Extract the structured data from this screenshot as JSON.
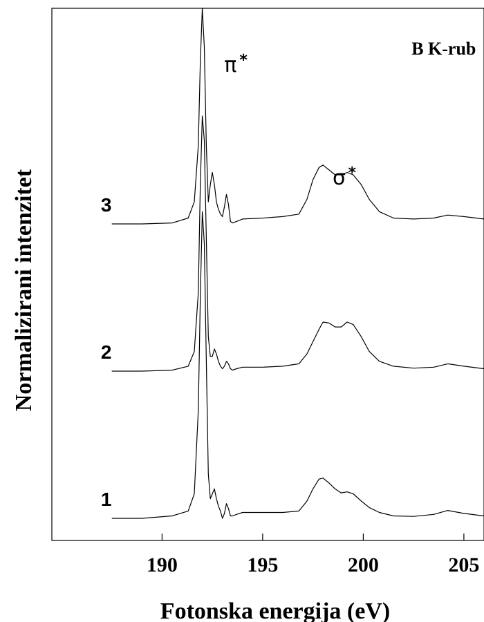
{
  "chart_data": {
    "type": "line",
    "title": "",
    "xlabel": "Fotonska energija (eV)",
    "ylabel": "Normalizirani intenzitet",
    "xlim": [
      186.0,
      206.0
    ],
    "ylim": [
      0.0,
      10.0
    ],
    "xticks": [
      190,
      195,
      200,
      205
    ],
    "xtick_labels": [
      "190",
      "195",
      "200",
      "205"
    ],
    "y_ticks_shown": false,
    "grid": false,
    "annotations": [
      {
        "id": "edge",
        "text": "B K-rub",
        "x": 204.0,
        "y": 9.45
      },
      {
        "id": "pi",
        "symbol": "π",
        "sup": "*",
        "x": 193.4,
        "y": 9.1
      },
      {
        "id": "sigma",
        "symbol": "σ",
        "sup": "*",
        "x": 198.8,
        "y": 6.8
      }
    ],
    "series": [
      {
        "label": "1",
        "color": "#000000",
        "x": [
          187.5,
          189.0,
          190.5,
          191.3,
          191.6,
          191.8,
          191.9,
          192.0,
          192.1,
          192.2,
          192.3,
          192.4,
          192.5,
          192.6,
          192.7,
          192.8,
          192.9,
          193.0,
          193.1,
          193.2,
          193.3,
          193.4,
          193.5,
          193.7,
          194.0,
          195.0,
          196.0,
          196.8,
          197.2,
          197.5,
          197.8,
          198.0,
          198.3,
          198.6,
          198.9,
          199.2,
          199.5,
          199.9,
          200.3,
          200.8,
          201.5,
          202.5,
          203.5,
          204.2,
          205.0,
          206.0
        ],
        "y": [
          0.0,
          0.0,
          0.05,
          0.15,
          0.5,
          2.2,
          4.5,
          6.25,
          5.6,
          3.2,
          0.9,
          0.4,
          0.5,
          0.6,
          0.4,
          0.25,
          0.15,
          0.0,
          0.1,
          0.3,
          0.2,
          0.05,
          0.05,
          0.08,
          0.12,
          0.12,
          0.12,
          0.15,
          0.35,
          0.6,
          0.8,
          0.82,
          0.72,
          0.6,
          0.52,
          0.54,
          0.5,
          0.35,
          0.22,
          0.12,
          0.05,
          0.04,
          0.08,
          0.16,
          0.1,
          0.05
        ]
      },
      {
        "label": "2",
        "color": "#000000",
        "x": [
          187.5,
          189.0,
          190.5,
          191.3,
          191.6,
          191.8,
          191.9,
          192.0,
          192.1,
          192.2,
          192.3,
          192.4,
          192.5,
          192.6,
          192.7,
          192.8,
          192.9,
          193.0,
          193.1,
          193.2,
          193.3,
          193.4,
          193.5,
          193.7,
          194.0,
          195.0,
          196.0,
          196.8,
          197.2,
          197.5,
          197.8,
          198.0,
          198.3,
          198.6,
          198.9,
          199.2,
          199.5,
          199.9,
          200.3,
          200.8,
          201.5,
          202.5,
          203.5,
          204.2,
          205.0,
          206.0
        ],
        "y": [
          3.0,
          3.0,
          3.02,
          3.1,
          3.4,
          4.6,
          6.8,
          8.2,
          7.7,
          5.7,
          3.7,
          3.3,
          3.3,
          3.45,
          3.35,
          3.2,
          3.1,
          3.05,
          3.1,
          3.2,
          3.15,
          3.05,
          3.02,
          3.05,
          3.08,
          3.08,
          3.1,
          3.15,
          3.35,
          3.6,
          3.85,
          4.0,
          3.98,
          3.9,
          3.9,
          4.0,
          3.95,
          3.7,
          3.4,
          3.2,
          3.1,
          3.06,
          3.08,
          3.15,
          3.1,
          3.05
        ]
      },
      {
        "label": "3",
        "color": "#000000",
        "x": [
          187.5,
          189.0,
          190.5,
          191.3,
          191.6,
          191.8,
          191.9,
          192.0,
          192.1,
          192.2,
          192.3,
          192.4,
          192.5,
          192.6,
          192.7,
          192.8,
          192.9,
          193.0,
          193.1,
          193.2,
          193.3,
          193.4,
          193.5,
          193.7,
          194.0,
          195.0,
          196.0,
          196.8,
          197.2,
          197.5,
          197.8,
          198.0,
          198.3,
          198.6,
          198.9,
          199.2,
          199.5,
          199.9,
          200.3,
          200.8,
          201.5,
          202.5,
          203.5,
          204.2,
          205.0,
          206.0
        ],
        "y": [
          6.0,
          6.0,
          6.02,
          6.12,
          6.45,
          7.6,
          9.3,
          10.4,
          9.6,
          7.6,
          6.45,
          6.8,
          7.05,
          6.8,
          6.45,
          6.3,
          6.2,
          6.15,
          6.35,
          6.6,
          6.4,
          6.05,
          6.02,
          6.05,
          6.1,
          6.12,
          6.15,
          6.2,
          6.5,
          6.9,
          7.15,
          7.2,
          7.1,
          7.0,
          7.0,
          7.05,
          7.0,
          6.8,
          6.5,
          6.25,
          6.12,
          6.1,
          6.12,
          6.18,
          6.15,
          6.1
        ]
      }
    ]
  }
}
